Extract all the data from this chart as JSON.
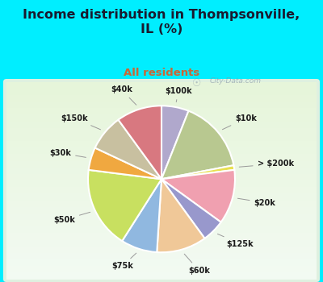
{
  "title": "Income distribution in Thompsonville,\nIL (%)",
  "subtitle": "All residents",
  "slices": [
    {
      "label": "$100k",
      "value": 6,
      "color": "#b0a8cc"
    },
    {
      "label": "$10k",
      "value": 16,
      "color": "#b8c890"
    },
    {
      "label": "> $200k",
      "value": 1,
      "color": "#e8e050"
    },
    {
      "label": "$20k",
      "value": 12,
      "color": "#f0a0b0"
    },
    {
      "label": "$125k",
      "value": 5,
      "color": "#9898cc"
    },
    {
      "label": "$60k",
      "value": 11,
      "color": "#f0c898"
    },
    {
      "label": "$75k",
      "value": 8,
      "color": "#90b8e0"
    },
    {
      "label": "$50k",
      "value": 18,
      "color": "#c8e060"
    },
    {
      "label": "$30k",
      "value": 5,
      "color": "#f0a840"
    },
    {
      "label": "$150k",
      "value": 8,
      "color": "#c8c0a0"
    },
    {
      "label": "$40k",
      "value": 10,
      "color": "#d87880"
    }
  ],
  "background_color": "#00eeff",
  "chart_bg": "#e0f0e0",
  "title_color": "#1a1a2e",
  "subtitle_color": "#cc6633",
  "label_color": "#1a1a1a",
  "watermark": "City-Data.com"
}
